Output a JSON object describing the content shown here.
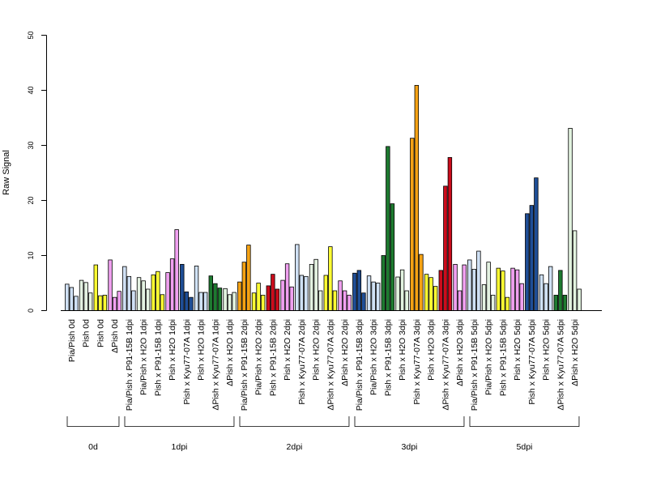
{
  "chart_data": {
    "type": "bar",
    "ylabel": "Raw Signal",
    "ylim": [
      0,
      50
    ],
    "yticks": [
      0,
      10,
      20,
      30,
      40,
      50
    ],
    "grid": false,
    "legend": "none",
    "bars_per_category": 3,
    "categories": [
      "Pia/Pish 0d",
      "Pish 0d",
      "Pish 0d",
      "ΔPish 0d",
      "Pia/Pish x P91-15B 1dpi",
      "Pia/Pish x H2O 1dpi",
      "Pish x P91-15B 1dpi",
      "Pish x H2O 1dpi",
      "Pish x Kyu77-07A 1dpi",
      "Pish x H2O 1dpi",
      "ΔPish x Kyu77-07A 1dpi",
      "ΔPish x H2O 1dpi",
      "Pia/Pish x P91-15B 2dpi",
      "Pia/Pish x H2O 2dpi",
      "Pish x P91-15B 2dpi",
      "Pish x H2O 2dpi",
      "Pish x Kyu77-07A 2dpi",
      "Pish x H2O 2dpi",
      "ΔPish x Kyu77-07A 2dpi",
      "ΔPish x H2O 2dpi",
      "Pia/Pish x P91-15B 3dpi",
      "Pia/Pish x H2O 3dpi",
      "Pish x P91-15B 3dpi",
      "Pish x H2O 3dpi",
      "Pish x Kyu77-07A 3dpi",
      "Pish x H2O 3dpi",
      "ΔPish x Kyu77-07A 3dpi",
      "ΔPish x H2O 3dpi",
      "Pia/Pish x P91-15B 5dpi",
      "Pia/Pish x H2O 5dpi",
      "Pish x P91-15B 5dpi",
      "Pish x H2O 5dpi",
      "Pish x Kyu77-07A 5dpi",
      "Pish x H2O 5dpi",
      "ΔPish x Kyu77-07A 5dpi",
      "ΔPish x H2O 5dpi"
    ],
    "colors": [
      "#cfe0f4",
      "#e4f2e2",
      "#ffff33",
      "#f0a0f0",
      "#1f4e96",
      "#d0e2f5",
      "#1e7a30",
      "#e2f3df",
      "#f5a214",
      "#ffff33",
      "#cc0c1c",
      "#f0a0f0"
    ],
    "values": [
      [
        4.8,
        4.2,
        2.6
      ],
      [
        5.5,
        5.1,
        3.2
      ],
      [
        8.3,
        2.7,
        2.8
      ],
      [
        9.2,
        2.4,
        3.5
      ],
      [
        8.0,
        6.2,
        3.6
      ],
      [
        6.0,
        5.4,
        3.9
      ],
      [
        6.5,
        7.1,
        2.9
      ],
      [
        6.9,
        9.4,
        14.7
      ],
      [
        8.4,
        3.4,
        2.4
      ],
      [
        8.1,
        3.3,
        3.3
      ],
      [
        6.3,
        4.9,
        4.1
      ],
      [
        4.0,
        2.9,
        3.3
      ],
      [
        5.2,
        8.8,
        11.9
      ],
      [
        3.2,
        5.0,
        2.8
      ],
      [
        4.5,
        6.6,
        3.9
      ],
      [
        5.5,
        8.5,
        4.3
      ],
      [
        12.0,
        6.4,
        6.2
      ],
      [
        8.4,
        9.3,
        3.6
      ],
      [
        6.4,
        11.6,
        3.6
      ],
      [
        5.4,
        3.6,
        2.8
      ],
      [
        6.8,
        7.3,
        3.2
      ],
      [
        6.3,
        5.2,
        5.0
      ],
      [
        10.0,
        29.8,
        19.4
      ],
      [
        6.1,
        7.4,
        3.6
      ],
      [
        31.3,
        40.9,
        10.2
      ],
      [
        6.6,
        6.0,
        4.4
      ],
      [
        7.3,
        22.6,
        27.8
      ],
      [
        8.4,
        3.6,
        8.3
      ],
      [
        9.2,
        7.5,
        10.8
      ],
      [
        4.7,
        8.8,
        2.8
      ],
      [
        7.7,
        7.2,
        2.4
      ],
      [
        7.7,
        7.4,
        4.9
      ],
      [
        17.6,
        19.1,
        24.1
      ],
      [
        6.5,
        4.9,
        8.0
      ],
      [
        2.8,
        7.3,
        2.8
      ],
      [
        33.1,
        14.5,
        3.9
      ]
    ],
    "groups": [
      {
        "label": "0d",
        "count": 4
      },
      {
        "label": "1dpi",
        "count": 8
      },
      {
        "label": "2dpi",
        "count": 8
      },
      {
        "label": "3dpi",
        "count": 8
      },
      {
        "label": "5dpi",
        "count": 8
      }
    ]
  }
}
